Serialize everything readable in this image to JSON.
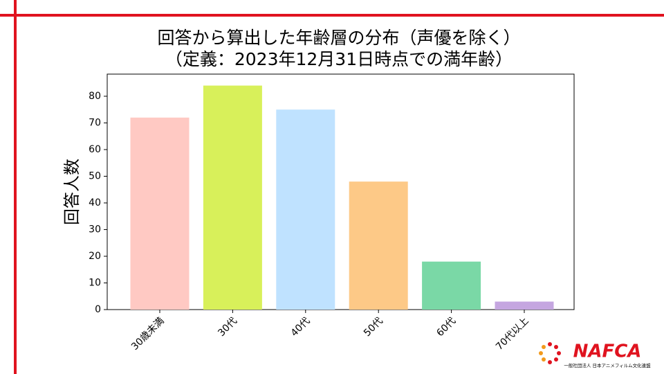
{
  "chart_data": {
    "type": "bar",
    "title": "回答から算出した年齢層の分布（声優を除く）",
    "subtitle": "（定義：2023年12月31日時点での満年齢）",
    "y_label": "回答人数",
    "categories": [
      "30歳未満",
      "30代",
      "40代",
      "50代",
      "60代",
      "70代以上"
    ],
    "values": [
      72,
      84,
      75,
      48,
      18,
      3
    ],
    "colors": [
      "#ffc9c3",
      "#d8f05a",
      "#bfe2ff",
      "#fdc987",
      "#7ad8a6",
      "#c5a6e0"
    ],
    "ylim": [
      0,
      88.3
    ],
    "yticks": [
      0,
      10,
      20,
      30,
      40,
      50,
      60,
      70,
      80
    ]
  },
  "logo": {
    "name": "NAFCA",
    "org": "一般社団法人 日本アニメフィルム文化連盟"
  }
}
